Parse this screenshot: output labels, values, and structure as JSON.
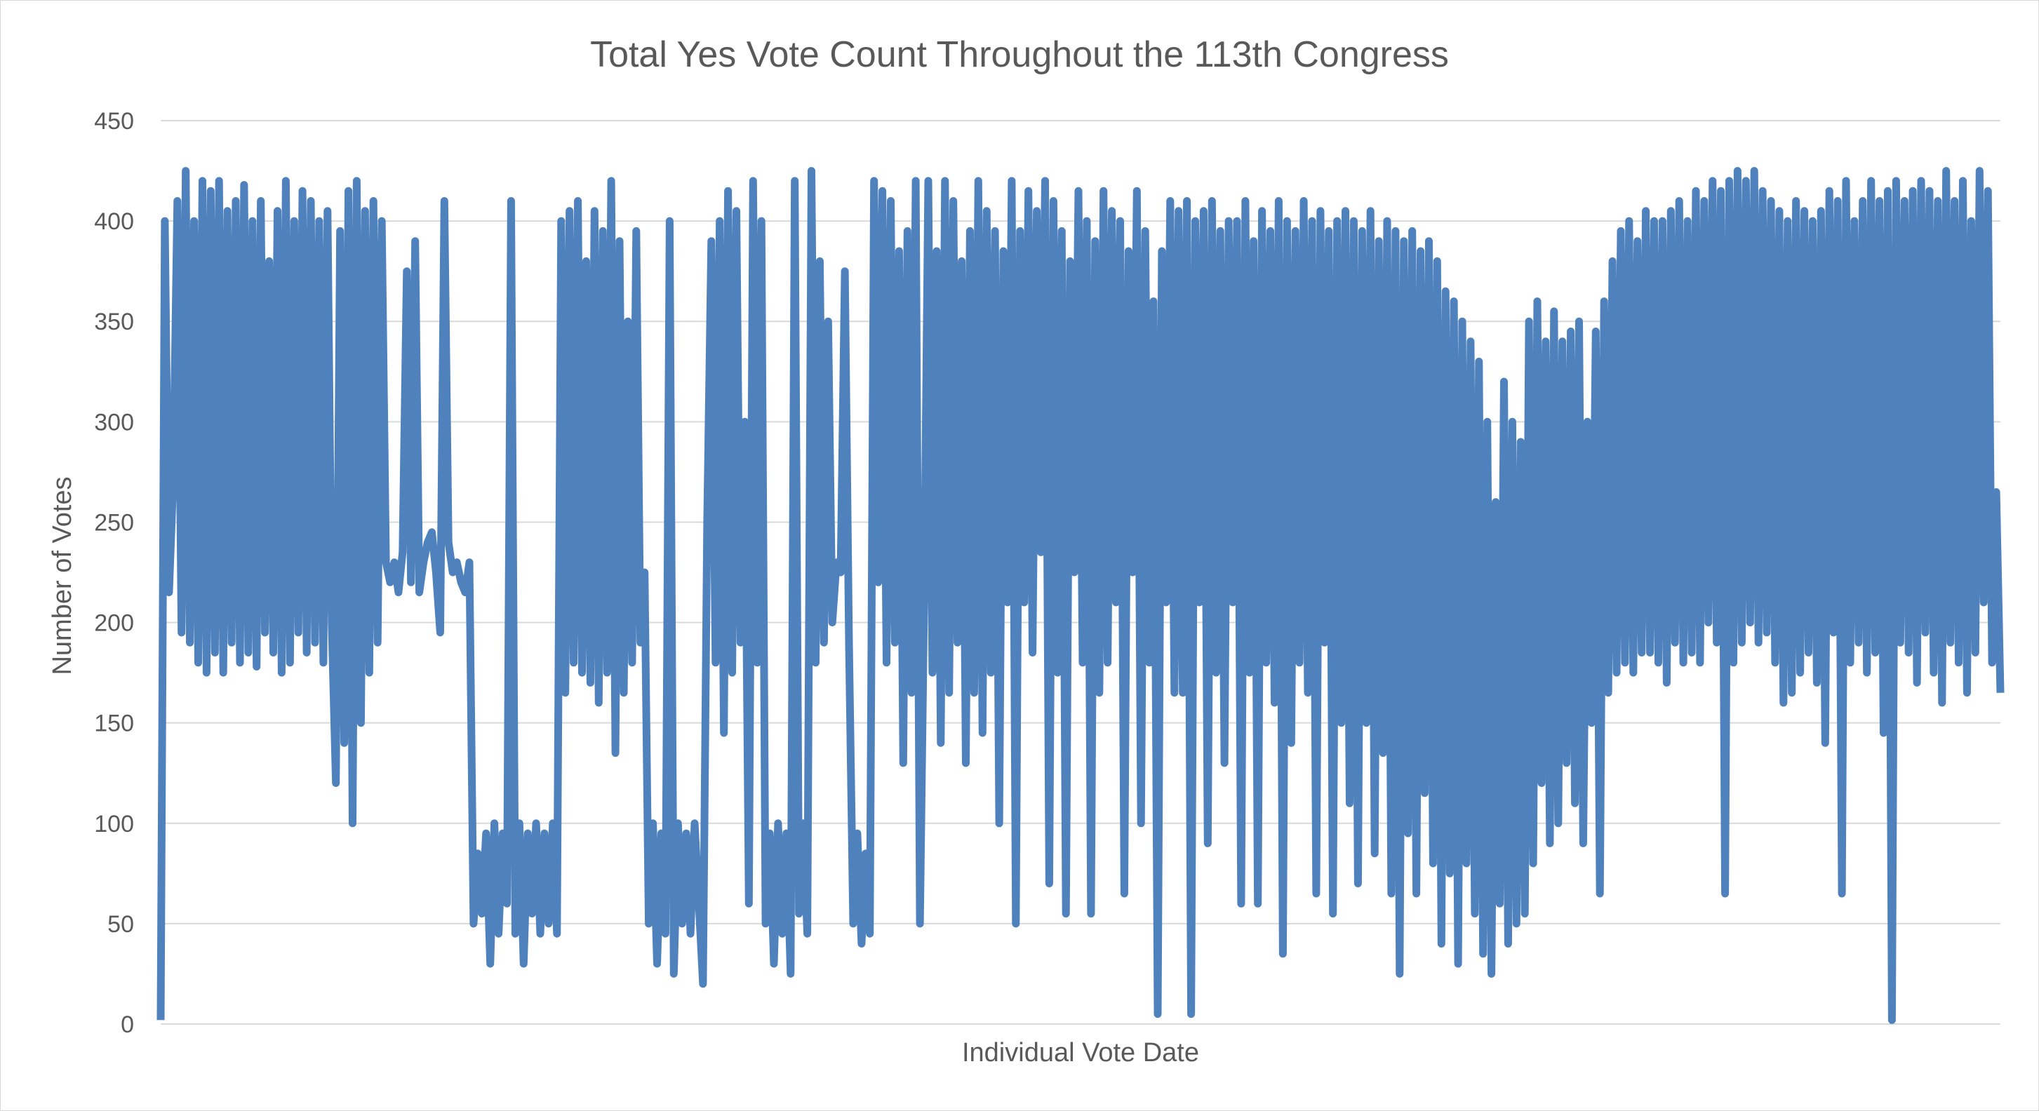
{
  "chart_data": {
    "type": "line",
    "title": "Total Yes Vote Count Throughout the 113th Congress",
    "xlabel": "Individual Vote Date",
    "ylabel": "Number of Votes",
    "ylim": [
      0,
      450
    ],
    "yticks": [
      0,
      50,
      100,
      150,
      200,
      250,
      300,
      350,
      400,
      450
    ],
    "grid": true,
    "legend": "none",
    "series": [
      {
        "color": "#4f81bd",
        "values": [
          2,
          400,
          215,
          270,
          410,
          195,
          425,
          190,
          400,
          180,
          420,
          175,
          415,
          185,
          420,
          175,
          405,
          190,
          410,
          180,
          418,
          185,
          400,
          178,
          410,
          195,
          380,
          185,
          405,
          175,
          420,
          180,
          400,
          195,
          415,
          185,
          410,
          190,
          400,
          180,
          405,
          200,
          120,
          395,
          140,
          415,
          100,
          420,
          150,
          405,
          175,
          410,
          190,
          400,
          230,
          220,
          230,
          215,
          235,
          375,
          220,
          390,
          215,
          230,
          240,
          245,
          225,
          195,
          410,
          240,
          225,
          230,
          220,
          215,
          230,
          50,
          85,
          55,
          95,
          30,
          100,
          45,
          95,
          60,
          410,
          45,
          100,
          30,
          95,
          55,
          100,
          45,
          95,
          50,
          100,
          45,
          400,
          165,
          405,
          180,
          410,
          175,
          380,
          170,
          405,
          160,
          395,
          175,
          420,
          135,
          390,
          165,
          350,
          180,
          395,
          190,
          225,
          50,
          100,
          30,
          95,
          45,
          400,
          25,
          100,
          50,
          95,
          45,
          100,
          60,
          20,
          250,
          390,
          180,
          400,
          145,
          415,
          175,
          405,
          190,
          300,
          60,
          420,
          180,
          400,
          50,
          95,
          30,
          100,
          45,
          95,
          25,
          420,
          55,
          100,
          45,
          425,
          180,
          380,
          190,
          350,
          200,
          230,
          225,
          375,
          190,
          50,
          95,
          40,
          85,
          45,
          420,
          220,
          415,
          180,
          410,
          190,
          385,
          130,
          395,
          165,
          420,
          50,
          210,
          420,
          175,
          385,
          140,
          420,
          165,
          410,
          190,
          380,
          130,
          395,
          165,
          420,
          145,
          405,
          175,
          395,
          100,
          385,
          210,
          420,
          50,
          395,
          210,
          415,
          185,
          405,
          235,
          420,
          70,
          410,
          175,
          395,
          55,
          380,
          225,
          415,
          180,
          400,
          55,
          390,
          165,
          415,
          180,
          405,
          210,
          400,
          65,
          385,
          225,
          415,
          100,
          395,
          180,
          360,
          5,
          385,
          210,
          410,
          165,
          405,
          165,
          410,
          5,
          400,
          210,
          405,
          90,
          410,
          175,
          395,
          130,
          400,
          210,
          400,
          60,
          410,
          175,
          390,
          60,
          405,
          180,
          395,
          160,
          410,
          35,
          400,
          140,
          395,
          180,
          410,
          165,
          400,
          65,
          405,
          190,
          395,
          55,
          400,
          150,
          405,
          110,
          400,
          70,
          395,
          150,
          405,
          85,
          390,
          135,
          400,
          65,
          395,
          25,
          390,
          95,
          395,
          65,
          385,
          115,
          390,
          80,
          380,
          40,
          365,
          75,
          360,
          30,
          350,
          80,
          340,
          55,
          330,
          35,
          300,
          25,
          260,
          60,
          320,
          40,
          300,
          50,
          290,
          55,
          350,
          80,
          360,
          120,
          340,
          90,
          355,
          100,
          340,
          130,
          345,
          110,
          350,
          90,
          300,
          150,
          345,
          65,
          360,
          165,
          380,
          175,
          395,
          180,
          400,
          175,
          390,
          185,
          405,
          185,
          400,
          180,
          400,
          170,
          405,
          190,
          410,
          180,
          400,
          185,
          415,
          180,
          410,
          200,
          420,
          190,
          415,
          65,
          420,
          180,
          425,
          190,
          420,
          200,
          425,
          190,
          415,
          195,
          410,
          180,
          405,
          160,
          400,
          165,
          410,
          175,
          405,
          185,
          400,
          170,
          405,
          140,
          415,
          195,
          410,
          65,
          420,
          180,
          400,
          190,
          410,
          175,
          420,
          185,
          410,
          145,
          415,
          2,
          420,
          190,
          410,
          185,
          415,
          170,
          420,
          195,
          415,
          175,
          410,
          160,
          425,
          190,
          410,
          180,
          420,
          165,
          400,
          185,
          425,
          210,
          415,
          180,
          265,
          165
        ]
      }
    ]
  }
}
